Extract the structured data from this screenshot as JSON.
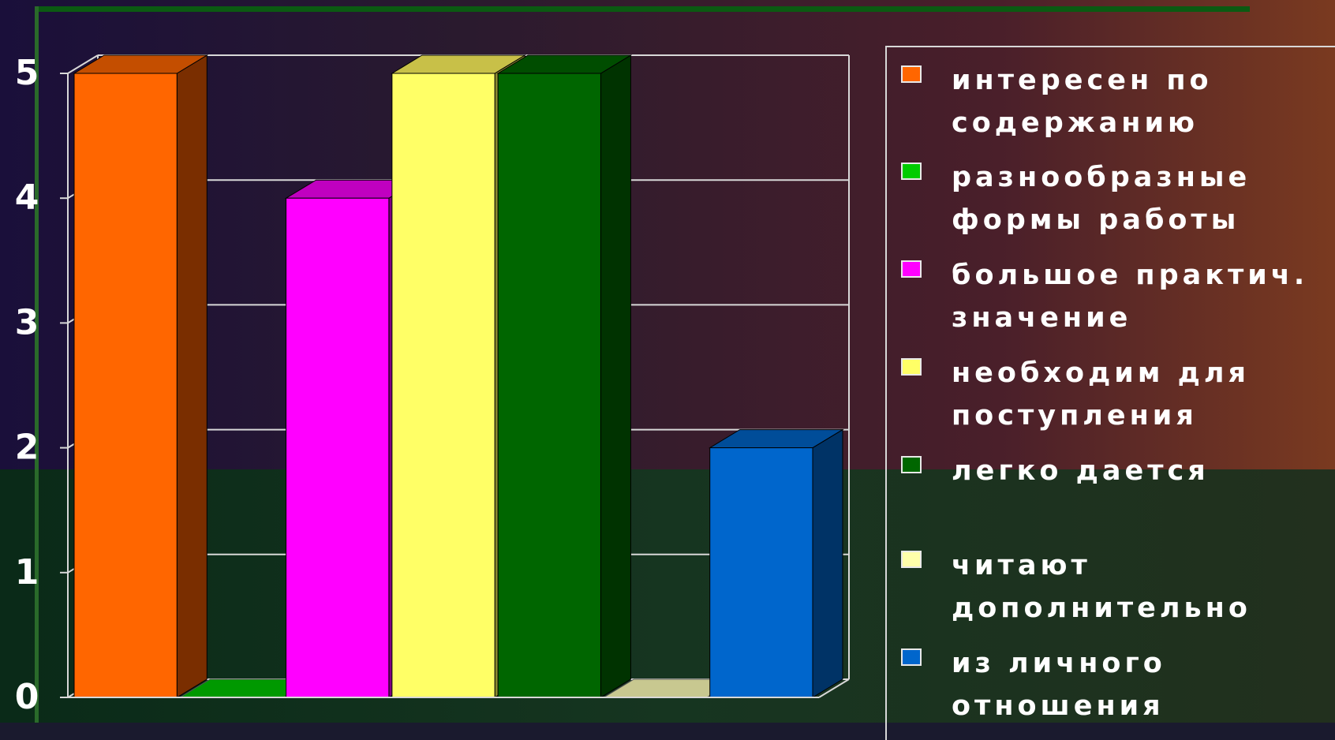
{
  "colors": {
    "background_top": "#3a1a2a",
    "background_bottom": "#163520",
    "grid": "#d8d8d8",
    "text": "#ffffff"
  },
  "chart_data": {
    "type": "bar",
    "title": "",
    "xlabel": "",
    "ylabel": "",
    "ylim": [
      0,
      5
    ],
    "yticks": [
      0,
      1,
      2,
      3,
      4,
      5
    ],
    "grid": true,
    "three_d": true,
    "legend_position": "right",
    "series": [
      {
        "name": "интересен по\nсодержанию",
        "value": 5,
        "color": "#ff6600",
        "side": "#7a2e00",
        "top": "#c44e00"
      },
      {
        "name": "разнообразные\nформы работы",
        "value": 0,
        "color": "#00cc00",
        "side": "#006400",
        "top": "#009900"
      },
      {
        "name": "большое практич.\nзначение",
        "value": 4,
        "color": "#ff00ff",
        "side": "#800080",
        "top": "#c000c0"
      },
      {
        "name": "необходим для\nпоступления",
        "value": 5,
        "color": "#ffff66",
        "side": "#8a8a2e",
        "top": "#c8c048"
      },
      {
        "name": "легко дается",
        "value": 5,
        "color": "#006600",
        "side": "#003300",
        "top": "#004d00"
      },
      {
        "name": "читают\nдополнительно",
        "value": 0,
        "color": "#ffffaa",
        "side": "#7a7a50",
        "top": "#c8c890"
      },
      {
        "name": "из личного\nотношения",
        "value": 2,
        "color": "#0066cc",
        "side": "#003366",
        "top": "#004d99"
      }
    ]
  }
}
